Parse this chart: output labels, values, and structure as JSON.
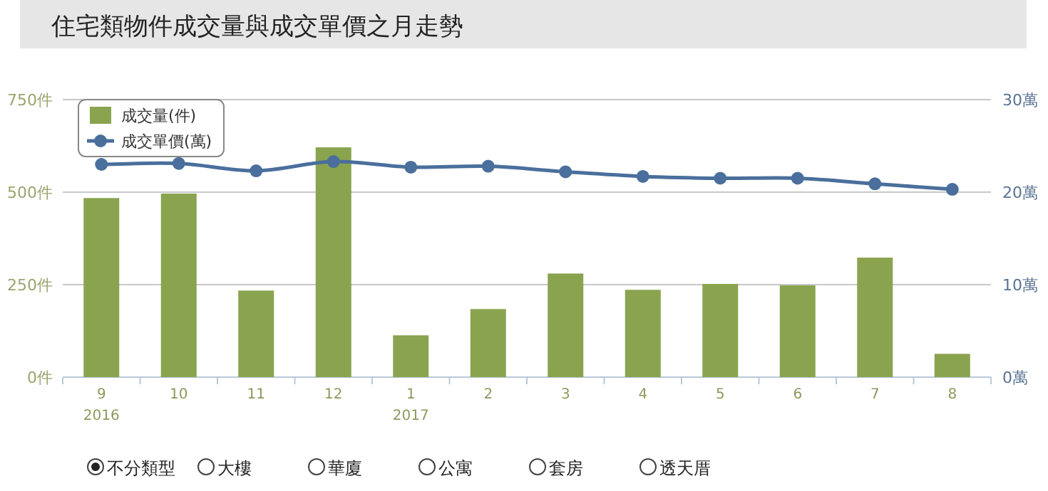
{
  "chart_data": {
    "type": "bar",
    "title": "住宅類物件成交量與成交單價之月走勢",
    "categories": [
      "9\n2016",
      "10",
      "11",
      "12",
      "1\n2017",
      "2",
      "3",
      "4",
      "5",
      "6",
      "7",
      "8"
    ],
    "series": [
      {
        "name": "成交量(件)",
        "color": "#8aa34f",
        "values": [
          484,
          496,
          234,
          621,
          113,
          184,
          280,
          236,
          252,
          248,
          323,
          63
        ]
      },
      {
        "name": "成交單價(萬)",
        "type": "line",
        "axis": "y2",
        "color": "#4a6f9c",
        "marker": "circle",
        "values": [
          23.0,
          23.1,
          22.3,
          23.3,
          22.7,
          22.8,
          22.2,
          21.7,
          21.5,
          21.5,
          20.9,
          20.3
        ]
      }
    ],
    "ylim": [
      0,
      750
    ],
    "yticks": [
      {
        "value": 0,
        "label": "0件"
      },
      {
        "value": 250,
        "label": "250件"
      },
      {
        "value": 500,
        "label": "500件"
      },
      {
        "value": 750,
        "label": "750件"
      }
    ],
    "y2lim": [
      0,
      30
    ],
    "y2ticks": [
      {
        "value": 0,
        "label": "0萬"
      },
      {
        "value": 10,
        "label": "10萬"
      },
      {
        "value": 20,
        "label": "20萬"
      },
      {
        "value": 30,
        "label": "30萬"
      }
    ],
    "grid": "y",
    "legend": "top left",
    "annotations": [
      "不分類型",
      "大樓",
      "華廈",
      "公寓",
      "套房",
      "透天厝"
    ]
  }
}
